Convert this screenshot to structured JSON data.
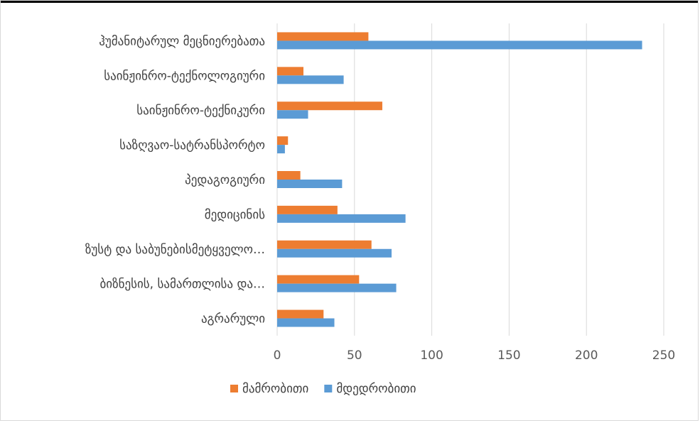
{
  "chart_data": {
    "type": "bar",
    "orientation": "horizontal",
    "categories": [
      "ჰუმანიტარულ მეცნიერებათა",
      "საინჟინრო-ტექნოლოგიური",
      "საინჟინრო-ტექნიკური",
      "საზღვაო-სატრანსპორტო",
      "პედაგოგიური",
      "მედიცინის",
      "ზუსტ და საბუნებისმეტყველო…",
      "ბიზნესის, სამართლისა და…",
      "აგრარული"
    ],
    "series": [
      {
        "name": "მამრობითი",
        "color": "#ED7D31",
        "values": [
          59,
          17,
          68,
          7,
          15,
          39,
          61,
          53,
          30
        ]
      },
      {
        "name": "მდედრობითი",
        "color": "#5B9BD5",
        "values": [
          236,
          43,
          20,
          5,
          42,
          83,
          74,
          77,
          37
        ]
      }
    ],
    "xlim": [
      0,
      250
    ],
    "xticks": [
      "0",
      "50",
      "100",
      "150",
      "200",
      "250"
    ],
    "grid": true,
    "legend": "bottom",
    "title": "",
    "xlabel": "",
    "ylabel": ""
  }
}
